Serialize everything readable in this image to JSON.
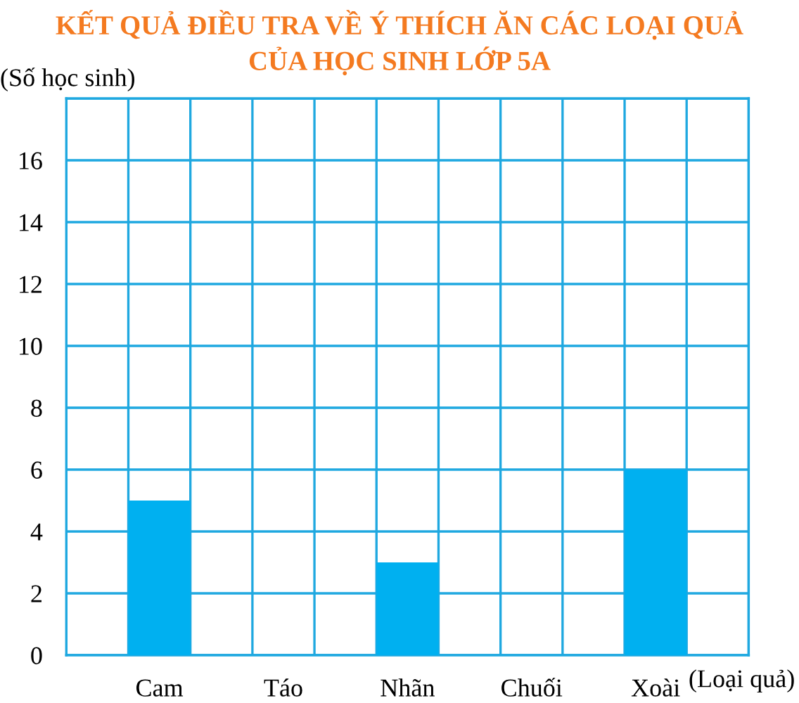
{
  "chart_data": {
    "type": "bar",
    "title": "KẾT QUẢ ĐIỀU TRA VỀ Ý THÍCH ĂN CÁC LOẠI QUẢ\nCỦA HỌC SINH LỚP 5A",
    "ylabel": "(Số học sinh)",
    "xlabel": "(Loại quả)",
    "categories": [
      "Cam",
      "Táo",
      "Nhãn",
      "Chuối",
      "Xoài"
    ],
    "values": [
      5,
      0,
      3,
      0,
      6
    ],
    "color": "#00b0f0",
    "ylim": [
      0,
      18
    ],
    "yticks": [
      0,
      2,
      4,
      6,
      8,
      10,
      12,
      14,
      16,
      {
        "value": 18,
        "label": null
      }
    ],
    "grid": true
  }
}
